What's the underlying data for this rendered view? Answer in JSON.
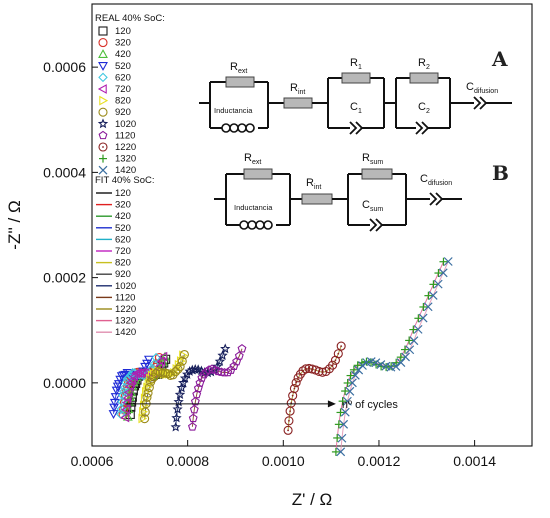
{
  "chart_data": {
    "type": "scatter",
    "xlabel": "Z' / Ω",
    "ylabel": "-Z'' / Ω",
    "xlim": [
      0.0006,
      0.00152
    ],
    "ylim": [
      -0.00012,
      0.00072
    ],
    "xticks": [
      "0.0006",
      "0.0008",
      "0.0010",
      "0.0012",
      "0.0014"
    ],
    "xtick_values": [
      0.0006,
      0.0008,
      0.001,
      0.0012,
      0.0014
    ],
    "yticks": [
      "0.0000",
      "0.0002",
      "0.0004",
      "0.0006"
    ],
    "ytick_values": [
      0,
      0.0002,
      0.0004,
      0.0006
    ],
    "grid": false,
    "legend_real": {
      "title": "REAL 40% SoC:",
      "entries": [
        {
          "label": "120",
          "marker": "square",
          "color": "#1a1a1a"
        },
        {
          "label": "320",
          "marker": "circle",
          "color": "#d8332a"
        },
        {
          "label": "420",
          "marker": "triangle-up",
          "color": "#4dbf3a"
        },
        {
          "label": "520",
          "marker": "triangle-down",
          "color": "#1f2bd6"
        },
        {
          "label": "620",
          "marker": "diamond",
          "color": "#40c8e0"
        },
        {
          "label": "720",
          "marker": "triangle-left",
          "color": "#b01fb0"
        },
        {
          "label": "820",
          "marker": "triangle-right",
          "color": "#e8e024"
        },
        {
          "label": "920",
          "marker": "circle",
          "color": "#9a8a1a"
        },
        {
          "label": "1020",
          "marker": "star",
          "color": "#161e5a"
        },
        {
          "label": "1120",
          "marker": "pentagon",
          "color": "#8a1a9a"
        },
        {
          "label": "1220",
          "marker": "circle-dot",
          "color": "#8a2222"
        },
        {
          "label": "1320",
          "marker": "plus",
          "color": "#2f9a1f"
        },
        {
          "label": "1420",
          "marker": "x",
          "color": "#3a6ea0"
        }
      ]
    },
    "legend_fit": {
      "title": "FIT 40% SoC:",
      "entries": [
        {
          "label": "120",
          "color": "#111111"
        },
        {
          "label": "320",
          "color": "#e02020"
        },
        {
          "label": "420",
          "color": "#2c9a2c"
        },
        {
          "label": "520",
          "color": "#2030d0"
        },
        {
          "label": "620",
          "color": "#20b0c8"
        },
        {
          "label": "720",
          "color": "#c020c0"
        },
        {
          "label": "820",
          "color": "#c8c020"
        },
        {
          "label": "920",
          "color": "#444444"
        },
        {
          "label": "1020",
          "color": "#203070"
        },
        {
          "label": "1120",
          "color": "#7a3a1a"
        },
        {
          "label": "1220",
          "color": "#9a8a1a"
        },
        {
          "label": "1320",
          "color": "#e06090"
        },
        {
          "label": "1420",
          "color": "#e090b0"
        }
      ]
    },
    "series": [
      {
        "name": "120",
        "marker": "square",
        "color": "#1a1a1a",
        "x0": 0.00068,
        "scale": 0.8,
        "noise": 1.2
      },
      {
        "name": "320",
        "marker": "circle",
        "color": "#d8332a",
        "x0": 0.000665,
        "scale": 0.82,
        "noise": 1.0
      },
      {
        "name": "420",
        "marker": "triangle-up",
        "color": "#4dbf3a",
        "x0": 0.000675,
        "scale": 0.84,
        "noise": 1.1
      },
      {
        "name": "520",
        "marker": "triangle-down",
        "color": "#1f2bd6",
        "x0": 0.000645,
        "scale": 0.8,
        "noise": 1.3
      },
      {
        "name": "620",
        "marker": "diamond",
        "color": "#40c8e0",
        "x0": 0.00066,
        "scale": 0.8,
        "noise": 1.2
      },
      {
        "name": "720",
        "marker": "triangle-left",
        "color": "#b01fb0",
        "x0": 0.00067,
        "scale": 0.86,
        "noise": 1.0
      },
      {
        "name": "820",
        "marker": "triangle-right",
        "color": "#e8e024",
        "x0": 0.000705,
        "scale": 0.92,
        "noise": 1.0
      },
      {
        "name": "920",
        "marker": "circle",
        "color": "#9a8a1a",
        "x0": 0.00071,
        "scale": 0.9,
        "noise": 1.1
      },
      {
        "name": "1020",
        "marker": "star",
        "color": "#161e5a",
        "x0": 0.000775,
        "scale": 1.12,
        "noise": 0.3
      },
      {
        "name": "1120",
        "marker": "pentagon",
        "color": "#8a1a9a",
        "x0": 0.00081,
        "scale": 1.12,
        "noise": 0.3
      },
      {
        "name": "1220",
        "marker": "circle-dot",
        "color": "#8a2222",
        "x0": 0.00101,
        "scale": 1.2,
        "noise": 0.2
      },
      {
        "name": "1320",
        "marker": "plus",
        "color": "#2f9a1f",
        "x0": 0.00111,
        "scale": 1.75,
        "noise": 0.2
      },
      {
        "name": "1420",
        "marker": "x",
        "color": "#3a6ea0",
        "x0": 0.00112,
        "scale": 1.75,
        "noise": 0.2
      }
    ],
    "annotation": "nº of cycles",
    "arrow": {
      "from": [
        0.00067,
        -4e-05
      ],
      "to": [
        0.00111,
        -4e-05
      ]
    },
    "circuit_a": {
      "letter": "A",
      "r_ext": "R",
      "r_ext_sub": "ext",
      "inductance": "Inductancia",
      "r_int": "R",
      "r_int_sub": "int",
      "r1": "R",
      "r1_sub": "1",
      "c1": "C",
      "c1_sub": "1",
      "r2": "R",
      "r2_sub": "2",
      "c2": "C",
      "c2_sub": "2",
      "c_diff": "C",
      "c_diff_sub": "difusion"
    },
    "circuit_b": {
      "letter": "B",
      "r_ext": "R",
      "r_ext_sub": "ext",
      "inductance": "Inductancia",
      "r_int": "R",
      "r_int_sub": "int",
      "r_sum": "R",
      "r_sum_sub": "sum",
      "c_sum": "C",
      "c_sum_sub": "sum",
      "c_diff": "C",
      "c_diff_sub": "difusion"
    }
  }
}
